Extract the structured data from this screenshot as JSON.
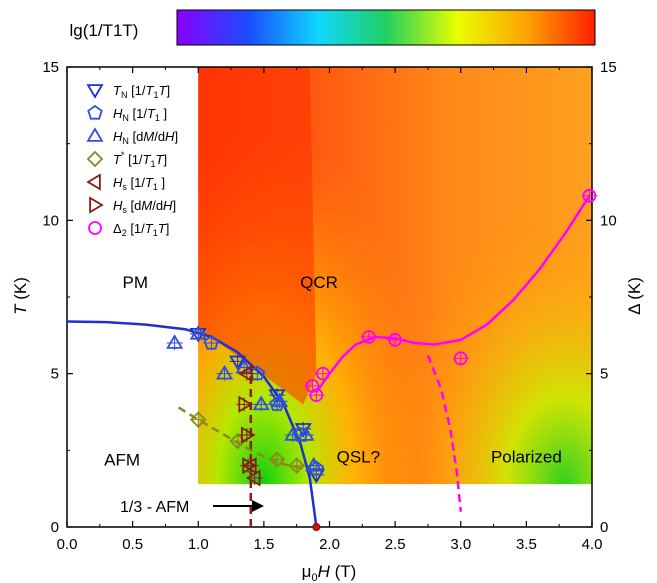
{
  "chart_data": {
    "type": "scatter",
    "xlabel": "μ0H (T)",
    "ylabel_left": "T (K)",
    "ylabel_right": "Δ (K)",
    "xlim": [
      0,
      4.0
    ],
    "ylim": [
      0,
      15
    ],
    "xticks": [
      "0.0",
      "0.5",
      "1.0",
      "1.5",
      "2.0",
      "2.5",
      "3.0",
      "3.5",
      "4.0"
    ],
    "yticks": [
      "0",
      "5",
      "10",
      "15"
    ],
    "colorbar_label": "lg(1/T1T)",
    "colorbar_colors": [
      "#8a00ff",
      "#1a4cff",
      "#10d8ff",
      "#20d060",
      "#e8ff00",
      "#ffa000",
      "#ff2000"
    ],
    "region_labels": [
      {
        "text": "PM",
        "x": 0.52,
        "y": 7.8
      },
      {
        "text": "QCR",
        "x": 1.92,
        "y": 7.8
      },
      {
        "text": "AFM",
        "x": 0.42,
        "y": 2.0
      },
      {
        "text": "QSL?",
        "x": 2.22,
        "y": 2.1
      },
      {
        "text": "Polarized",
        "x": 3.5,
        "y": 2.1
      }
    ],
    "annotation_afm13": "1/3 - AFM",
    "legend": [
      {
        "label": "T_N [1/T1T]",
        "marker": "triangle-down",
        "color": "#1f2fd0"
      },
      {
        "label": "H_N [1/T1]",
        "marker": "pentagon",
        "color": "#2f4fe0"
      },
      {
        "label": "H_N [dM/dH]",
        "marker": "triangle-up",
        "color": "#2f4fe0"
      },
      {
        "label": "T* [1/T1T]",
        "marker": "diamond",
        "color": "#8a8a1a"
      },
      {
        "label": "H_s [1/T1]",
        "marker": "triangle-left",
        "color": "#8b1a1a"
      },
      {
        "label": "H_s [dM/dH]",
        "marker": "triangle-right",
        "color": "#8b1a1a"
      },
      {
        "label": "Δ2 [1/T1T]",
        "marker": "circle",
        "color": "#ff00ff"
      }
    ],
    "series": [
      {
        "name": "T_N [1/T1T]",
        "marker": "triangle-down",
        "color": "#1f2fd0",
        "x": [
          1.0,
          1.3,
          1.6,
          1.8,
          1.9
        ],
        "y": [
          6.3,
          5.4,
          4.3,
          3.2,
          1.7
        ]
      },
      {
        "name": "H_N [1/T1]",
        "marker": "pentagon",
        "color": "#2f4fe0",
        "x": [
          1.1,
          1.45,
          1.6,
          1.78,
          1.9
        ],
        "y": [
          6.0,
          5.0,
          4.0,
          3.0,
          1.9
        ]
      },
      {
        "name": "H_N [dM/dH]",
        "marker": "triangle-up",
        "color": "#2f4fe0",
        "x": [
          0.82,
          1.0,
          1.2,
          1.35,
          1.48,
          1.62,
          1.72,
          1.82,
          1.88
        ],
        "y": [
          6.0,
          6.3,
          5.0,
          5.2,
          4.0,
          4.1,
          3.0,
          3.0,
          2.0
        ]
      },
      {
        "name": "T* [1/T1T]",
        "marker": "diamond",
        "color": "#8a8a1a",
        "x": [
          1.0,
          1.3,
          1.6,
          1.75
        ],
        "y": [
          3.5,
          2.8,
          2.2,
          2.0
        ]
      },
      {
        "name": "H_s [1/T1]",
        "marker": "triangle-left",
        "color": "#8b1a1a",
        "x": [
          1.37,
          1.4,
          1.43
        ],
        "y": [
          5.0,
          2.0,
          1.6
        ]
      },
      {
        "name": "H_s [dM/dH]",
        "marker": "triangle-right",
        "color": "#8b1a1a",
        "x": [
          1.35,
          1.37,
          1.38
        ],
        "y": [
          4.0,
          3.0,
          2.0
        ]
      },
      {
        "name": "Δ2 [1/T1T]",
        "marker": "circle",
        "color": "#ff00ff",
        "x": [
          1.87,
          1.9,
          1.95,
          2.3,
          2.5,
          3.0,
          3.98
        ],
        "y": [
          4.6,
          4.3,
          5.0,
          6.2,
          6.1,
          5.5,
          10.8
        ]
      }
    ],
    "curves": [
      {
        "name": "AFM boundary",
        "style": "solid",
        "color": "#1f2fd0",
        "x": [
          0,
          0.3,
          0.6,
          0.9,
          1.1,
          1.3,
          1.5,
          1.65,
          1.78,
          1.85,
          1.9
        ],
        "y": [
          6.7,
          6.68,
          6.6,
          6.45,
          6.2,
          5.7,
          4.9,
          4.0,
          2.7,
          1.6,
          0
        ]
      },
      {
        "name": "Δ2 fit",
        "style": "solid",
        "color": "#ff00ff",
        "x": [
          1.9,
          2.0,
          2.1,
          2.2,
          2.35,
          2.5,
          2.65,
          2.8,
          3.0,
          3.2,
          3.4,
          3.6,
          3.8,
          3.98
        ],
        "y": [
          4.4,
          5.0,
          5.55,
          5.95,
          6.2,
          6.15,
          6.0,
          5.95,
          6.1,
          6.6,
          7.4,
          8.4,
          9.6,
          10.8
        ]
      },
      {
        "name": "Polarized boundary",
        "style": "dashed",
        "color": "#ff00ff",
        "x": [
          2.75,
          2.85,
          2.92,
          2.97,
          3.0
        ],
        "y": [
          5.6,
          4.5,
          3.2,
          1.8,
          0.5
        ]
      },
      {
        "name": "1/3-AFM boundary",
        "style": "dashed",
        "color": "#8b1a1a",
        "x": [
          1.4,
          1.4
        ],
        "y": [
          0,
          5.3
        ]
      },
      {
        "name": "T* line",
        "style": "dashed",
        "color": "#8a8a1a",
        "x": [
          0.85,
          1.0,
          1.2,
          1.4,
          1.6,
          1.8
        ],
        "y": [
          3.9,
          3.5,
          3.0,
          2.5,
          2.1,
          1.9
        ]
      }
    ],
    "heatmap_extent": {
      "x": [
        1.0,
        4.0
      ],
      "y": [
        1.4,
        15
      ]
    },
    "special_point": {
      "x": 1.9,
      "y": 0,
      "color": "#d01010"
    }
  }
}
